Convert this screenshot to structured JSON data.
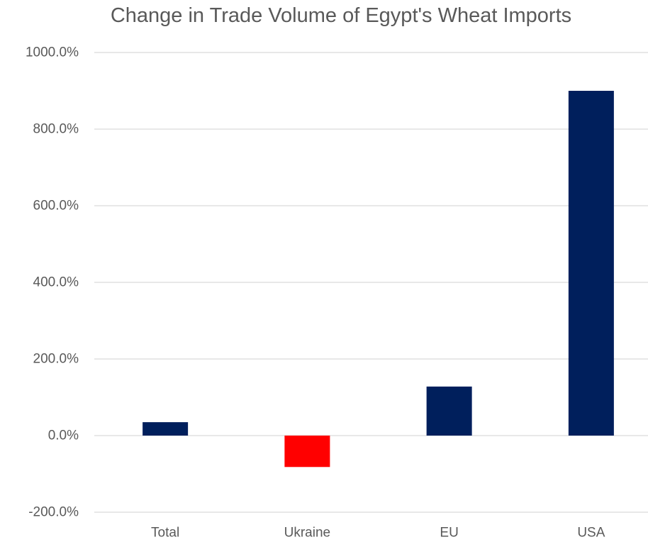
{
  "chart_data": {
    "type": "bar",
    "title": "Change in Trade Volume of Egypt's Wheat Imports",
    "xlabel": "",
    "ylabel": "",
    "categories": [
      "Total",
      "Ukraine",
      "EU",
      "USA"
    ],
    "values": [
      35,
      -82,
      128,
      900
    ],
    "unit": "%",
    "ylim": [
      -200,
      1000
    ],
    "yticks": [
      -200,
      0,
      200,
      400,
      600,
      800,
      1000
    ],
    "ytick_labels": [
      "-200.0%",
      "0.0%",
      "200.0%",
      "400.0%",
      "600.0%",
      "800.0%",
      "1000.0%"
    ],
    "grid": true,
    "legend": "none",
    "colors": {
      "positive": "#001f5c",
      "negative": "#ff0000",
      "grid": "#d9d9d9",
      "text": "#595959"
    }
  }
}
